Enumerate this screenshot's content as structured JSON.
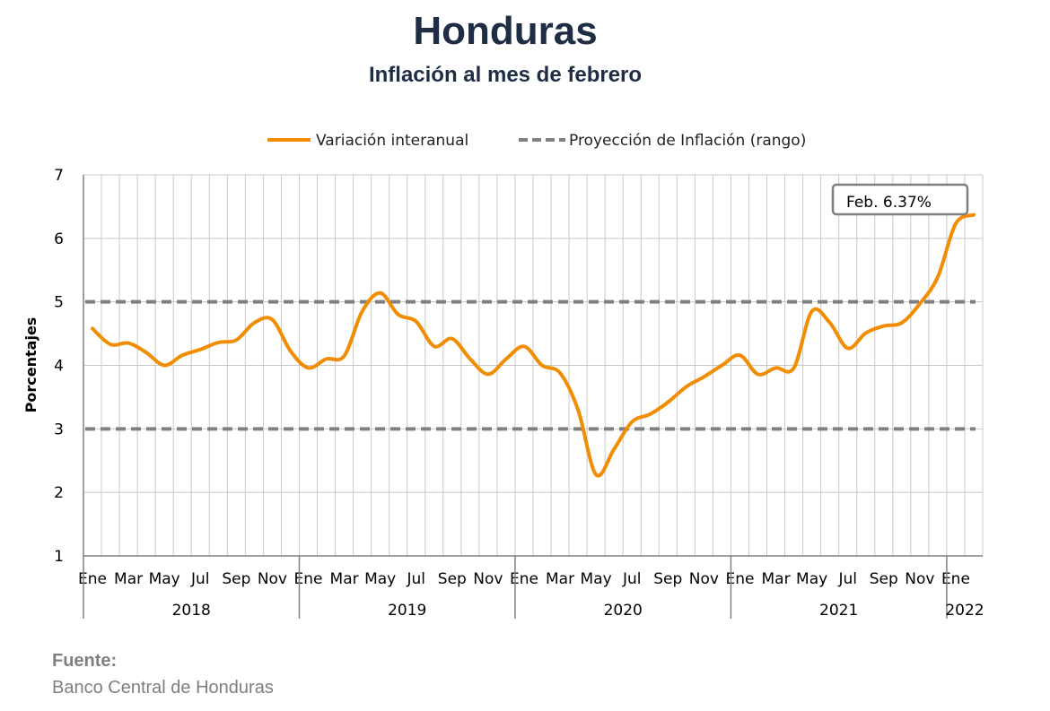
{
  "header": {
    "title": "Honduras",
    "subtitle": "Inflación al mes de febrero"
  },
  "source": {
    "label": "Fuente:",
    "text": "Banco Central de Honduras"
  },
  "colors": {
    "series": "#f28c00",
    "target": "#808080",
    "title": "#1f2d44",
    "source": "#7f7f7f",
    "grid": "#c8c8c8"
  },
  "chart_data": {
    "type": "line",
    "ylabel": "Porcentajes",
    "ylim": [
      1,
      7
    ],
    "yticks": [
      1,
      2,
      3,
      4,
      5,
      6,
      7
    ],
    "grid": true,
    "legend_position": "top",
    "month_tick_labels": [
      "Ene",
      "Mar",
      "May",
      "Jul",
      "Sep",
      "Nov",
      "Ene",
      "Mar",
      "May",
      "Jul",
      "Sep",
      "Nov",
      "Ene",
      "Mar",
      "May",
      "Jul",
      "Sep",
      "Nov",
      "Ene",
      "Mar",
      "May",
      "Jul",
      "Sep",
      "Nov",
      "Ene"
    ],
    "month_tick_positions": [
      0,
      2,
      4,
      6,
      8,
      10,
      12,
      14,
      16,
      18,
      20,
      22,
      24,
      26,
      28,
      30,
      32,
      34,
      36,
      38,
      40,
      42,
      44,
      46,
      48
    ],
    "years": [
      {
        "label": "2018",
        "start": 0,
        "end": 11
      },
      {
        "label": "2019",
        "start": 12,
        "end": 23
      },
      {
        "label": "2020",
        "start": 24,
        "end": 35
      },
      {
        "label": "2021",
        "start": 36,
        "end": 47
      },
      {
        "label": "2022",
        "start": 48,
        "end": 49
      }
    ],
    "series": [
      {
        "name": "Variación interanual",
        "style": "solid",
        "values": [
          4.58,
          4.33,
          4.35,
          4.2,
          4.0,
          4.16,
          4.25,
          4.36,
          4.4,
          4.67,
          4.72,
          4.23,
          3.96,
          4.1,
          4.15,
          4.85,
          5.14,
          4.8,
          4.69,
          4.3,
          4.42,
          4.1,
          3.86,
          4.1,
          4.3,
          4.0,
          3.88,
          3.3,
          2.28,
          2.68,
          3.11,
          3.23,
          3.42,
          3.66,
          3.82,
          4.0,
          4.16,
          3.86,
          3.96,
          3.96,
          4.85,
          4.67,
          4.27,
          4.51,
          4.62,
          4.67,
          4.97,
          5.39,
          6.23,
          6.37
        ]
      },
      {
        "name": "Proyección de Inflación (rango)",
        "style": "dashed",
        "upper": 5.0,
        "lower": 3.0
      }
    ],
    "annotation": {
      "text": "Feb. 6.37%",
      "index": 49,
      "value": 6.37
    }
  }
}
